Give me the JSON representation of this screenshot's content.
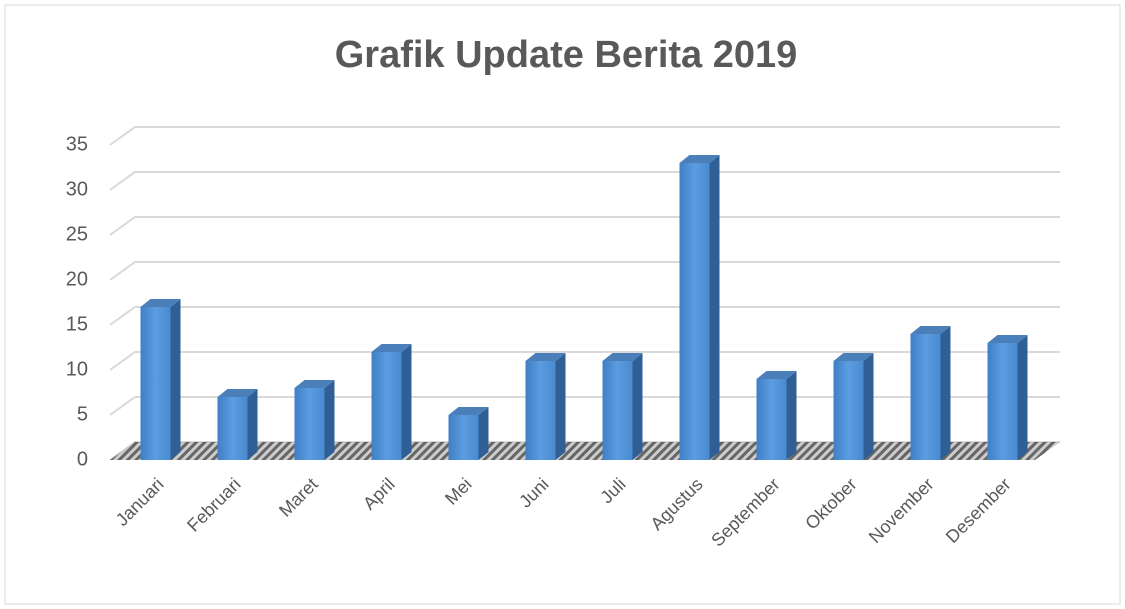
{
  "chart_data": {
    "type": "bar3d",
    "title": "Grafik Update Berita 2019",
    "categories": [
      "Januari",
      "Februari",
      "Maret",
      "April",
      "Mei",
      "Juni",
      "Juli",
      "Agustus",
      "September",
      "Oktober",
      "November",
      "Desember"
    ],
    "values": [
      17,
      7,
      8,
      12,
      5,
      11,
      11,
      33,
      9,
      11,
      14,
      13
    ],
    "color": "#4a8ad0",
    "ylim": [
      0,
      35
    ],
    "yticks": [
      0,
      5,
      10,
      15,
      20,
      25,
      30,
      35
    ],
    "grid": true
  }
}
